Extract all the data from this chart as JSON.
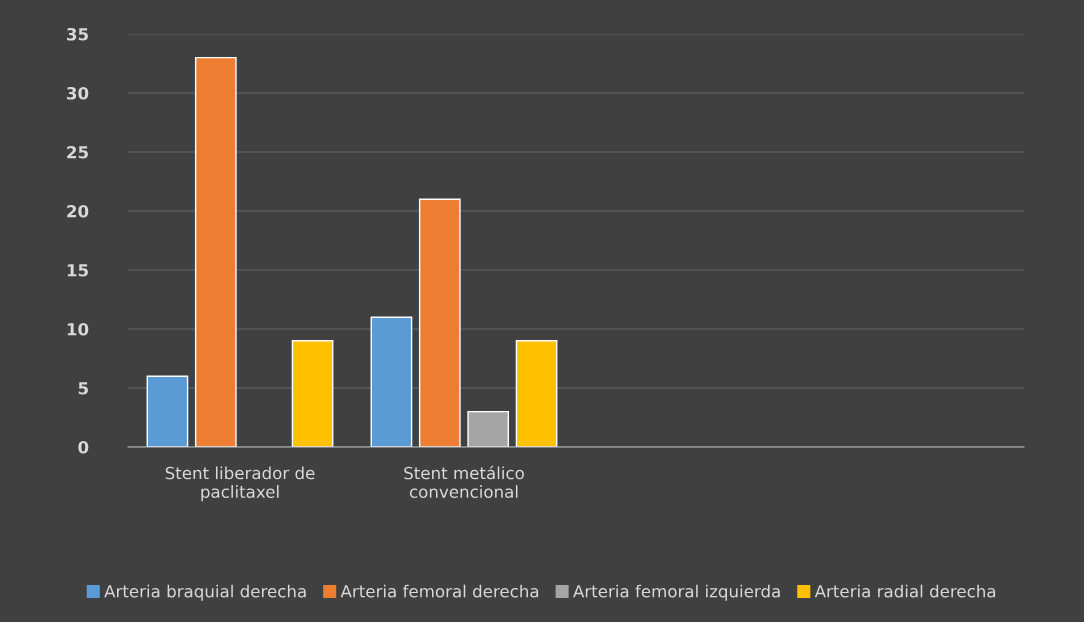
{
  "chart_data": {
    "type": "bar",
    "categories": [
      "Stent liberador de paclitaxel",
      "Stent metálico convencional",
      null,
      null
    ],
    "series": [
      {
        "name": "Arteria braquial derecha",
        "color": "#5b9bd5",
        "values": [
          6,
          11,
          null,
          null
        ]
      },
      {
        "name": "Arteria femoral derecha",
        "color": "#ed7d31",
        "values": [
          33,
          21,
          null,
          null
        ]
      },
      {
        "name": "Arteria femoral izquierda",
        "color": "#a5a5a5",
        "values": [
          null,
          3,
          null,
          null
        ]
      },
      {
        "name": "Arteria radial derecha",
        "color": "#ffc000",
        "values": [
          9,
          9,
          null,
          null
        ]
      }
    ],
    "ylim": [
      0,
      35
    ],
    "yticks": [
      0,
      5,
      10,
      15,
      20,
      25,
      30,
      35
    ],
    "grid": "y",
    "legend": "bottom"
  }
}
